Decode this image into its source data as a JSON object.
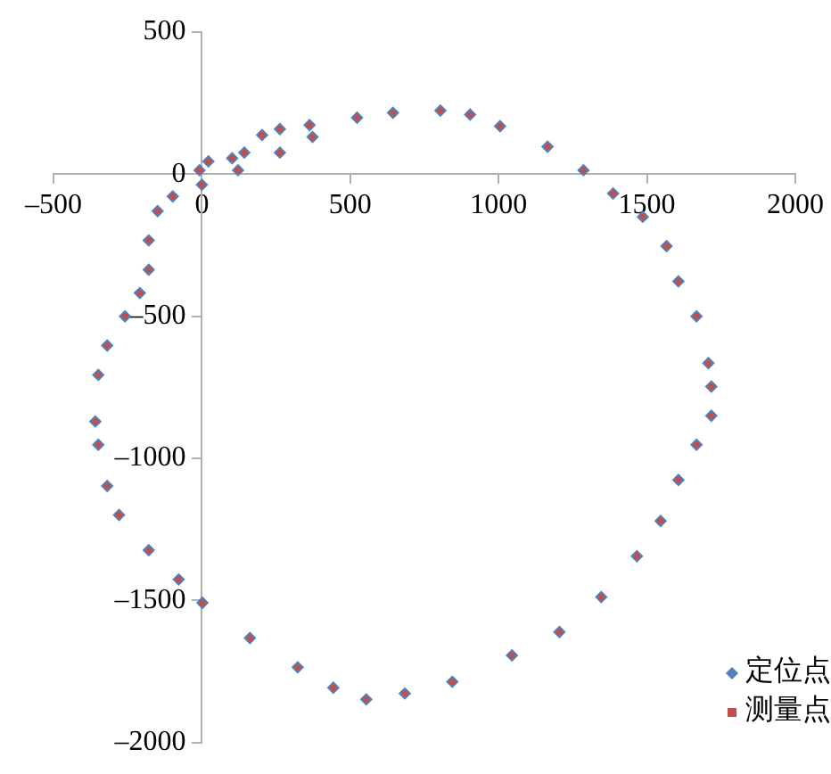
{
  "chart_data": {
    "type": "scatter",
    "xlim": [
      -500,
      2000
    ],
    "ylim": [
      -2000,
      500
    ],
    "xticks": [
      {
        "value": -500,
        "label": "–500"
      },
      0,
      500,
      1000,
      1500,
      2000
    ],
    "yticks": [
      {
        "value": -2000,
        "label": "–2000"
      },
      {
        "value": -1500,
        "label": "–1500"
      },
      {
        "value": -1000,
        "label": "–1000"
      },
      {
        "value": -500,
        "label": "–500"
      },
      0,
      500
    ],
    "grid": false,
    "legend": "bottom right",
    "series": [
      {
        "name": "定位点",
        "color": "#4f81bd",
        "marker": "diamond",
        "x": [
          373,
          263,
          122,
          0,
          -98,
          -149,
          -179,
          -179,
          -209,
          -259,
          -319,
          -349,
          -359,
          -349,
          -319,
          -279,
          -179,
          -78,
          2,
          162,
          323,
          443,
          554,
          684,
          844,
          1045,
          1205,
          1346,
          1466,
          1546,
          1606,
          1667,
          1717,
          1717,
          1707,
          1667,
          1606,
          1566,
          1486,
          1386,
          1286,
          1165,
          1005,
          904,
          804,
          644,
          523,
          363,
          263,
          203,
          143,
          102,
          22,
          -8
        ],
        "values": [
          131,
          76,
          14,
          -37,
          -78,
          -130,
          -233,
          -336,
          -418,
          -500,
          -603,
          -706,
          -870,
          -952,
          -1097,
          -1199,
          -1323,
          -1426,
          -1508,
          -1632,
          -1735,
          -1807,
          -1848,
          -1827,
          -1786,
          -1693,
          -1611,
          -1488,
          -1344,
          -1220,
          -1076,
          -952,
          -850,
          -747,
          -665,
          -500,
          -377,
          -253,
          -150,
          -68,
          14,
          97,
          169,
          210,
          224,
          216,
          199,
          173,
          159,
          138,
          76,
          56,
          45,
          14
        ]
      },
      {
        "name": "测量点",
        "color": "#c0504d",
        "marker": "circle",
        "x": [
          373,
          263,
          122,
          0,
          -98,
          -149,
          -179,
          -179,
          -209,
          -259,
          -319,
          -349,
          -359,
          -349,
          -319,
          -279,
          -179,
          -78,
          2,
          162,
          323,
          443,
          554,
          684,
          844,
          1045,
          1205,
          1346,
          1466,
          1546,
          1606,
          1667,
          1717,
          1717,
          1707,
          1667,
          1606,
          1566,
          1486,
          1386,
          1286,
          1165,
          1005,
          904,
          804,
          644,
          523,
          363,
          263,
          203,
          143,
          102,
          22,
          -8
        ],
        "values": [
          131,
          76,
          14,
          -37,
          -78,
          -130,
          -233,
          -336,
          -418,
          -500,
          -603,
          -706,
          -870,
          -952,
          -1097,
          -1199,
          -1323,
          -1426,
          -1508,
          -1632,
          -1735,
          -1807,
          -1848,
          -1827,
          -1786,
          -1693,
          -1611,
          -1488,
          -1344,
          -1220,
          -1076,
          -952,
          -850,
          -747,
          -665,
          -500,
          -377,
          -253,
          -150,
          -68,
          14,
          97,
          169,
          210,
          224,
          216,
          199,
          173,
          159,
          138,
          76,
          56,
          45,
          14
        ]
      }
    ]
  }
}
